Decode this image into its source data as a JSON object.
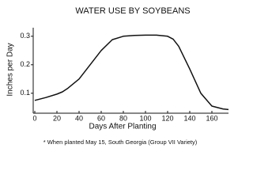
{
  "chart_data": {
    "type": "line",
    "title": "WATER USE BY SOYBEANS",
    "x_label": "Days After Planting",
    "y_label": "Inches per Day",
    "footnote": "* When planted May 15, South Georgia (Group VII Variety)",
    "x": [
      0,
      10,
      20,
      25,
      30,
      40,
      50,
      60,
      70,
      80,
      90,
      100,
      110,
      120,
      125,
      130,
      140,
      150,
      160,
      170,
      175
    ],
    "series": [
      {
        "name": "Water use",
        "color": "#111111",
        "values": [
          0.075,
          0.085,
          0.097,
          0.105,
          0.118,
          0.15,
          0.2,
          0.25,
          0.288,
          0.3,
          0.303,
          0.304,
          0.304,
          0.3,
          0.29,
          0.265,
          0.185,
          0.1,
          0.055,
          0.045,
          0.043
        ]
      }
    ],
    "xlim": [
      0,
      175
    ],
    "xticks": [
      0,
      20,
      40,
      60,
      80,
      100,
      120,
      140,
      160
    ],
    "ylim": [
      0.03,
      0.33
    ],
    "yticks": [
      0.1,
      0.2,
      0.3
    ]
  }
}
